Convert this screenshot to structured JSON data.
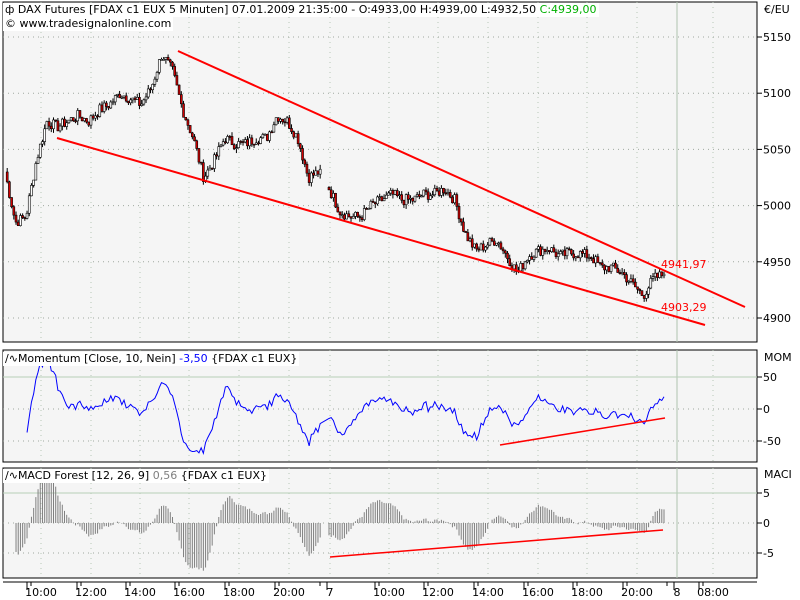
{
  "header": {
    "symbol_icon": "candle-icon",
    "title": "DAX Futures [FDAX c1 EUX  5 Minuten] 07.01.2009 21:35:00 - O:4933,00 H:4939,00 L:4932,50",
    "close": "C:4939,00",
    "copyright": "© www.tradesignalonline.com"
  },
  "colors": {
    "candle_up": "#ffffff",
    "candle_down": "#d00000",
    "trend": "#ff0000",
    "momentum": "#0000ff",
    "macd": "#808080",
    "close_text": "#00b000"
  },
  "chart_data": [
    {
      "type": "candlestick",
      "title": "DAX Futures [FDAX c1 EUX  5 Minuten]",
      "unit_label": "€/EU",
      "ylim": [
        4870,
        5180
      ],
      "yticks": [
        5150,
        5100,
        5050,
        5000,
        4950,
        4900
      ],
      "price_path": [
        5030,
        4985,
        4990,
        5040,
        5075,
        5070,
        5075,
        5080,
        5075,
        5085,
        5090,
        5100,
        5095,
        5090,
        5105,
        5135,
        5120,
        5085,
        5060,
        5025,
        5040,
        5060,
        5055,
        5055,
        5060,
        5060,
        5080,
        5075,
        5060,
        5025,
        5030,
        5015,
        4995,
        4990,
        4990,
        5000,
        5005,
        5010,
        5005,
        5005,
        5010,
        5010,
        5015,
        5005,
        4975,
        4960,
        4965,
        4970,
        4955,
        4940,
        4955,
        4960,
        4962,
        4955,
        4958,
        4957,
        4955,
        4945,
        4945,
        4940,
        4930,
        4920,
        4935,
        4939
      ],
      "annotations": [
        {
          "text": "4941,97",
          "price": 4941.97
        },
        {
          "text": "4903,29",
          "price": 4903.29
        }
      ]
    },
    {
      "type": "line",
      "title": "Momentum [Close, 10, Nein]",
      "value": "-3,50",
      "source": "{FDAX c1 EUX}",
      "unit_label": "MOM",
      "ylim": [
        -90,
        80
      ],
      "yticks": [
        50,
        0,
        -50
      ]
    },
    {
      "type": "bar",
      "title": "MACD Forest [12, 26, 9]",
      "value": "0,56",
      "source": "{FDAX c1 EUX}",
      "unit_label": "MACI",
      "ylim": [
        -9,
        9
      ],
      "yticks": [
        5,
        0,
        -5
      ]
    }
  ],
  "xaxis": {
    "ticks": [
      "10:00",
      "12:00",
      "14:00",
      "16:00",
      "18:00",
      "20:00",
      "7",
      "10:00",
      "12:00",
      "14:00",
      "16:00",
      "18:00",
      "20:00",
      "8",
      "08:00"
    ]
  }
}
